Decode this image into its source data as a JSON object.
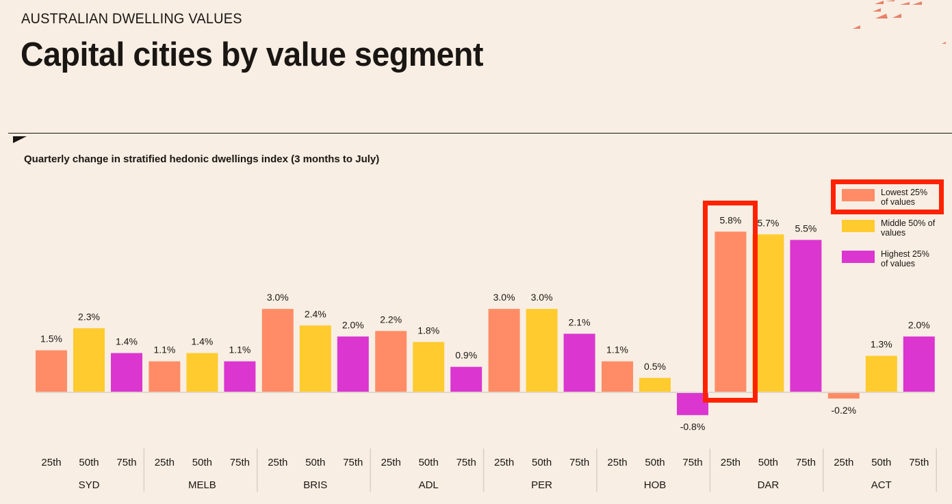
{
  "header": {
    "kicker": "AUSTRALIAN DWELLING VALUES",
    "title": "Capital cities by value segment",
    "decoration_icon": "scattered-triangles-decoration"
  },
  "colors": {
    "background": "#f8eee3",
    "lowest": "#ff8c66",
    "middle": "#ffcb2e",
    "highest": "#db36d0",
    "highlight": "#ff2200",
    "decoration": "#e8806a"
  },
  "legend": [
    {
      "key": "lowest",
      "label": "Lowest 25% of values",
      "highlighted": true
    },
    {
      "key": "middle",
      "label": "Middle 50% of values",
      "highlighted": false
    },
    {
      "key": "highest",
      "label": "Highest 25% of values",
      "highlighted": false
    }
  ],
  "chart_data": {
    "type": "bar",
    "title": "Quarterly change in stratified hedonic dwellings index (3 months to July)",
    "xlabel": "",
    "ylabel": "",
    "categories": [
      "SYD",
      "MELB",
      "BRIS",
      "ADL",
      "PER",
      "HOB",
      "DAR",
      "ACT"
    ],
    "subcategories": [
      "25th",
      "50th",
      "75th"
    ],
    "series": [
      {
        "name": "Lowest 25% of values",
        "key": "lowest",
        "values": [
          1.5,
          1.1,
          3.0,
          2.2,
          3.0,
          1.1,
          5.8,
          -0.2
        ]
      },
      {
        "name": "Middle 50% of values",
        "key": "middle",
        "values": [
          2.3,
          1.4,
          2.4,
          1.8,
          3.0,
          0.5,
          5.7,
          1.3
        ]
      },
      {
        "name": "Highest 25% of values",
        "key": "highest",
        "values": [
          1.4,
          1.1,
          2.0,
          0.9,
          2.1,
          -0.8,
          5.5,
          2.0
        ]
      }
    ],
    "labels": [
      [
        "1.5%",
        "2.3%",
        "1.4%"
      ],
      [
        "1.1%",
        "1.4%",
        "1.1%"
      ],
      [
        "3.0%",
        "2.4%",
        "2.0%"
      ],
      [
        "2.2%",
        "1.8%",
        "0.9%"
      ],
      [
        "3.0%",
        "3.0%",
        "2.1%"
      ],
      [
        "1.1%",
        "0.5%",
        "-0.8%"
      ],
      [
        "5.8%",
        "5.7%",
        "5.5%"
      ],
      [
        "-0.2%",
        "1.3%",
        "2.0%"
      ]
    ],
    "unit": "%",
    "grid": false,
    "legend_position": "top-right",
    "annotation": "DAR 25th bar (5.8%) highlighted with red box"
  }
}
